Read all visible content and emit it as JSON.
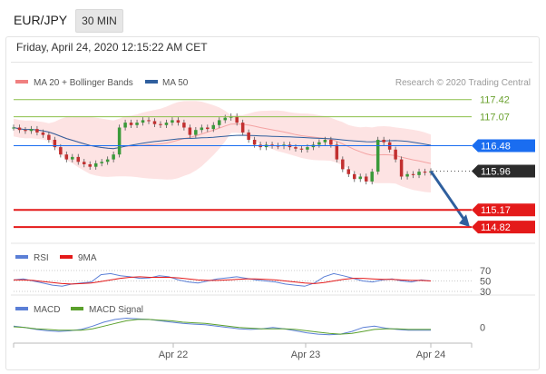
{
  "header": {
    "pair": "EUR/JPY",
    "timeframe": "30 MIN"
  },
  "datetime": "Friday, April 24, 2020 12:15:22 AM CET",
  "legend": {
    "ma_bb": "MA 20 + Bollinger Bands",
    "ma50": "MA 50",
    "credit": "Research © 2020 Trading Central"
  },
  "colors": {
    "ma_bb": "#f08080",
    "ma50": "#2f5f9e",
    "support": "#e41a1a",
    "current": "#2b2b2b",
    "pivot": "#1a6df0",
    "resistance": "#8cbf4a",
    "rsi": "#5b7fd6",
    "rsi_9ma": "#e41a1a",
    "macd": "#5b7fd6",
    "macd_signal": "#5aa02c"
  },
  "chart_data": {
    "type": "line",
    "title": "EUR/JPY",
    "x_ticks": [
      "Apr 22",
      "Apr 23",
      "Apr 24"
    ],
    "price_levels": [
      {
        "label": "117.42",
        "value": 117.42,
        "kind": "resistance"
      },
      {
        "label": "117.07",
        "value": 117.07,
        "kind": "resistance"
      },
      {
        "label": "116.48",
        "value": 116.48,
        "kind": "pivot"
      },
      {
        "label": "115.96",
        "value": 115.96,
        "kind": "current"
      },
      {
        "label": "115.17",
        "value": 115.17,
        "kind": "support"
      },
      {
        "label": "114.82",
        "value": 114.82,
        "kind": "support"
      }
    ],
    "price_close": [
      116.85,
      116.8,
      116.78,
      116.82,
      116.75,
      116.7,
      116.6,
      116.45,
      116.3,
      116.2,
      116.25,
      116.15,
      116.1,
      116.05,
      116.12,
      116.15,
      116.2,
      116.3,
      116.85,
      116.95,
      116.9,
      116.95,
      117.0,
      116.98,
      116.92,
      116.9,
      116.95,
      117.0,
      116.95,
      116.85,
      116.7,
      116.8,
      116.85,
      116.82,
      116.9,
      117.0,
      117.05,
      117.08,
      116.95,
      116.75,
      116.6,
      116.5,
      116.45,
      116.5,
      116.48,
      116.47,
      116.5,
      116.45,
      116.42,
      116.4,
      116.45,
      116.5,
      116.55,
      116.6,
      116.5,
      116.2,
      116.0,
      115.9,
      115.8,
      115.85,
      115.75,
      115.95,
      116.6,
      116.55,
      116.4,
      116.2,
      115.85,
      115.9,
      115.88,
      115.95,
      115.93,
      115.96
    ],
    "price_ylim": [
      114.6,
      117.6
    ],
    "series": [
      {
        "name": "MA 20 + Bollinger Bands"
      },
      {
        "name": "MA 50"
      }
    ],
    "indicators": [
      {
        "name": "RSI",
        "levels": [
          "70",
          "50",
          "30"
        ],
        "rsi": [
          52,
          54,
          50,
          46,
          42,
          40,
          44,
          46,
          48,
          62,
          64,
          60,
          58,
          55,
          56,
          60,
          58,
          52,
          48,
          46,
          50,
          54,
          56,
          58,
          55,
          52,
          50,
          48,
          44,
          42,
          40,
          46,
          58,
          64,
          60,
          55,
          50,
          48,
          52,
          54,
          50,
          48,
          52,
          50
        ],
        "rsi_9ma": [
          52,
          52,
          51,
          49,
          47,
          45,
          44,
          45,
          46,
          49,
          52,
          55,
          57,
          58,
          57,
          57,
          57,
          56,
          54,
          52,
          51,
          51,
          52,
          53,
          54,
          54,
          53,
          52,
          50,
          48,
          46,
          45,
          47,
          50,
          53,
          55,
          55,
          54,
          53,
          53,
          52,
          51,
          51,
          50
        ]
      },
      {
        "name": "MACD",
        "levels": [
          "0"
        ],
        "macd": [
          0.02,
          0.0,
          -0.03,
          -0.05,
          -0.06,
          -0.05,
          -0.03,
          0.02,
          0.08,
          0.12,
          0.14,
          0.13,
          0.12,
          0.1,
          0.08,
          0.06,
          0.05,
          0.04,
          0.02,
          0.0,
          -0.02,
          -0.03,
          -0.02,
          0.0,
          -0.02,
          -0.05,
          -0.08,
          -0.1,
          -0.11,
          -0.1,
          -0.06,
          0.0,
          0.02,
          -0.01,
          -0.03,
          -0.04,
          -0.04,
          -0.04
        ],
        "signal": [
          0.01,
          0.0,
          -0.02,
          -0.03,
          -0.04,
          -0.04,
          -0.04,
          -0.02,
          0.02,
          0.06,
          0.1,
          0.12,
          0.12,
          0.11,
          0.1,
          0.08,
          0.07,
          0.06,
          0.04,
          0.02,
          0.0,
          -0.01,
          -0.02,
          -0.02,
          -0.02,
          -0.03,
          -0.05,
          -0.07,
          -0.09,
          -0.1,
          -0.09,
          -0.06,
          -0.03,
          -0.02,
          -0.02,
          -0.03,
          -0.03,
          -0.03
        ]
      }
    ],
    "ind_legend": {
      "rsi": "RSI",
      "rsi_9ma": "9MA",
      "macd": "MACD",
      "macd_signal": "MACD Signal"
    }
  }
}
